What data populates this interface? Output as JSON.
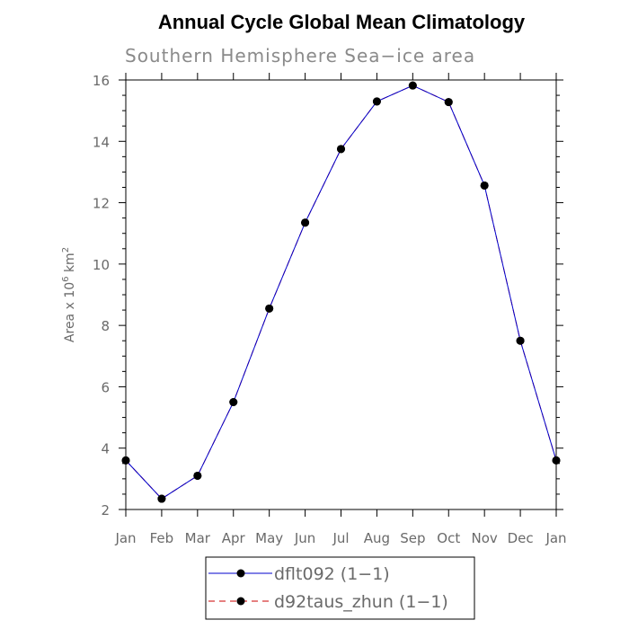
{
  "chart_data": {
    "type": "line",
    "title": "Annual Cycle Global Mean Climatology",
    "subtitle": "Southern Hemisphere Sea−ice area",
    "ylabel": {
      "prefix": "Area x 10",
      "exponent": "6",
      "unit": " km",
      "unit_exponent": "2"
    },
    "categories": [
      "Jan",
      "Feb",
      "Mar",
      "Apr",
      "May",
      "Jun",
      "Jul",
      "Aug",
      "Sep",
      "Oct",
      "Nov",
      "Dec",
      "Jan"
    ],
    "ylim": [
      2,
      16
    ],
    "yticks": [
      2,
      4,
      6,
      8,
      10,
      12,
      14,
      16
    ],
    "grid": false,
    "legend_position": "bottom",
    "series": [
      {
        "name": "dflt092 (1−1)",
        "color": "#0000cc",
        "line_style": "solid",
        "marker": "filled-circle",
        "values": [
          3.6,
          2.35,
          3.1,
          5.5,
          8.55,
          11.35,
          13.75,
          15.3,
          15.82,
          15.28,
          12.56,
          7.5,
          3.6
        ]
      },
      {
        "name": "d92taus_zhun (1−1)",
        "color": "#cc0000",
        "line_style": "dashed",
        "marker": "filled-circle",
        "values": [
          3.6,
          2.35,
          3.1,
          5.5,
          8.55,
          11.35,
          13.75,
          15.3,
          15.82,
          15.28,
          12.56,
          7.5,
          3.6
        ]
      }
    ]
  }
}
